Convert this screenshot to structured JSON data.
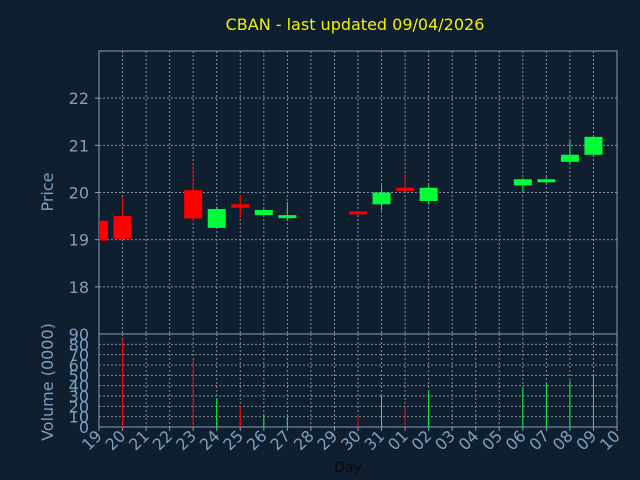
{
  "chart_data": [
    {
      "type": "candlestick",
      "title": "CBAN - last updated 09/04/2026",
      "ylabel": "Price",
      "ylim": [
        17,
        23
      ],
      "yticks": [
        18,
        19,
        20,
        21,
        22
      ],
      "grid": true,
      "x_ticklabels": [
        "19",
        "20",
        "21",
        "22",
        "23",
        "24",
        "25",
        "26",
        "27",
        "28",
        "29",
        "30",
        "31",
        "01",
        "02",
        "03",
        "04",
        "05",
        "06",
        "07",
        "08",
        "09",
        "10"
      ],
      "candles": [
        {
          "day": "19",
          "open": 19.4,
          "high": 19.45,
          "low": 18.95,
          "close": 18.98
        },
        {
          "day": "20",
          "open": 19.5,
          "high": 19.9,
          "low": 19.0,
          "close": 19.02
        },
        {
          "day": "23",
          "open": 20.05,
          "high": 20.6,
          "low": 19.4,
          "close": 19.45
        },
        {
          "day": "24",
          "open": 19.25,
          "high": 19.7,
          "low": 19.25,
          "close": 19.65
        },
        {
          "day": "25",
          "open": 19.75,
          "high": 19.95,
          "low": 19.45,
          "close": 19.68
        },
        {
          "day": "26",
          "open": 19.52,
          "high": 19.65,
          "low": 19.52,
          "close": 19.63
        },
        {
          "day": "27",
          "open": 19.48,
          "high": 19.8,
          "low": 19.42,
          "close": 19.52
        },
        {
          "day": "30",
          "open": 19.6,
          "high": 19.6,
          "low": 19.52,
          "close": 19.55
        },
        {
          "day": "31",
          "open": 19.75,
          "high": 20.15,
          "low": 19.62,
          "close": 20.0
        },
        {
          "day": "01",
          "open": 20.1,
          "high": 20.4,
          "low": 20.05,
          "close": 20.08
        },
        {
          "day": "02",
          "open": 19.82,
          "high": 20.15,
          "low": 19.75,
          "close": 20.1
        },
        {
          "day": "06",
          "open": 20.15,
          "high": 20.3,
          "low": 20.02,
          "close": 20.28
        },
        {
          "day": "07",
          "open": 20.22,
          "high": 20.32,
          "low": 20.2,
          "close": 20.28
        },
        {
          "day": "08",
          "open": 20.65,
          "high": 21.1,
          "low": 20.62,
          "close": 20.8
        },
        {
          "day": "09",
          "open": 20.8,
          "high": 21.2,
          "low": 20.78,
          "close": 21.18
        }
      ]
    },
    {
      "type": "bar",
      "ylabel": "Volume (0000)",
      "xlabel": "Day",
      "ylim": [
        0,
        90
      ],
      "yticks": [
        0,
        10,
        20,
        30,
        40,
        50,
        60,
        70,
        80,
        90
      ],
      "series": [
        {
          "values": [
            {
              "day": "20",
              "value": 85,
              "dir": "down"
            },
            {
              "day": "23",
              "value": 65,
              "dir": "down"
            },
            {
              "day": "24",
              "value": 28,
              "dir": "up"
            },
            {
              "day": "25",
              "value": 20,
              "dir": "down"
            },
            {
              "day": "26",
              "value": 12,
              "dir": "up"
            },
            {
              "day": "27",
              "value": 10,
              "dir": "up"
            },
            {
              "day": "30",
              "value": 12,
              "dir": "down"
            },
            {
              "day": "31",
              "value": 30,
              "dir": "up"
            },
            {
              "day": "01",
              "value": 20,
              "dir": "down"
            },
            {
              "day": "02",
              "value": 35,
              "dir": "up"
            },
            {
              "day": "06",
              "value": 38,
              "dir": "up"
            },
            {
              "day": "07",
              "value": 42,
              "dir": "up"
            },
            {
              "day": "08",
              "value": 45,
              "dir": "up"
            },
            {
              "day": "09",
              "value": 50,
              "dir": "up"
            }
          ]
        }
      ]
    }
  ],
  "colors": {
    "background": "#0f1f2f",
    "axis": "#7f9fbf",
    "grid": "#7f8f9f",
    "title": "#f2f200",
    "up": "#00ff3a",
    "down": "#ff0000"
  }
}
